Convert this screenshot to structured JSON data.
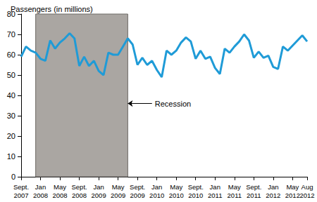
{
  "chart_data": {
    "type": "line",
    "title": "Passengers (in millions)",
    "categories": [
      "Sept.\n2007",
      null,
      null,
      null,
      "Jan\n2008",
      null,
      null,
      null,
      "May\n2008",
      null,
      null,
      null,
      "Sept.\n2008",
      null,
      null,
      null,
      "Jan\n2009",
      null,
      null,
      null,
      "May\n2009",
      null,
      null,
      null,
      "Sept.\n2009",
      null,
      null,
      null,
      "Jan\n2010",
      null,
      null,
      null,
      "May\n2010",
      null,
      null,
      null,
      "Sept.\n2010",
      null,
      null,
      null,
      "Jan\n2011",
      null,
      null,
      null,
      "May\n2011",
      null,
      null,
      null,
      "Sept.\n2011",
      null,
      null,
      null,
      "Jan\n2012",
      null,
      null,
      null,
      "May\n2012",
      null,
      null,
      "Aug\n2012"
    ],
    "values": [
      59,
      64,
      62,
      61,
      58,
      57,
      67,
      63,
      66,
      68,
      70.5,
      68,
      54.5,
      59,
      54.5,
      57,
      52,
      50,
      61,
      60,
      60,
      64,
      68,
      65,
      55,
      58.5,
      55,
      57,
      52.5,
      49,
      62,
      60,
      62,
      66,
      68.5,
      66.5,
      58,
      62,
      58,
      59,
      53.5,
      50.5,
      63,
      61,
      64,
      66.5,
      70,
      67,
      58.5,
      61.5,
      58.5,
      59.5,
      54,
      53,
      64,
      62,
      64.5,
      67,
      69.5,
      66.5
    ],
    "color": "#1f9bd7",
    "ylim": [
      0,
      80
    ],
    "yticks": [
      0,
      10,
      20,
      30,
      40,
      50,
      60,
      70,
      80
    ],
    "grid": false,
    "recession": {
      "label": "Recession",
      "start": 3,
      "end": 22
    }
  }
}
